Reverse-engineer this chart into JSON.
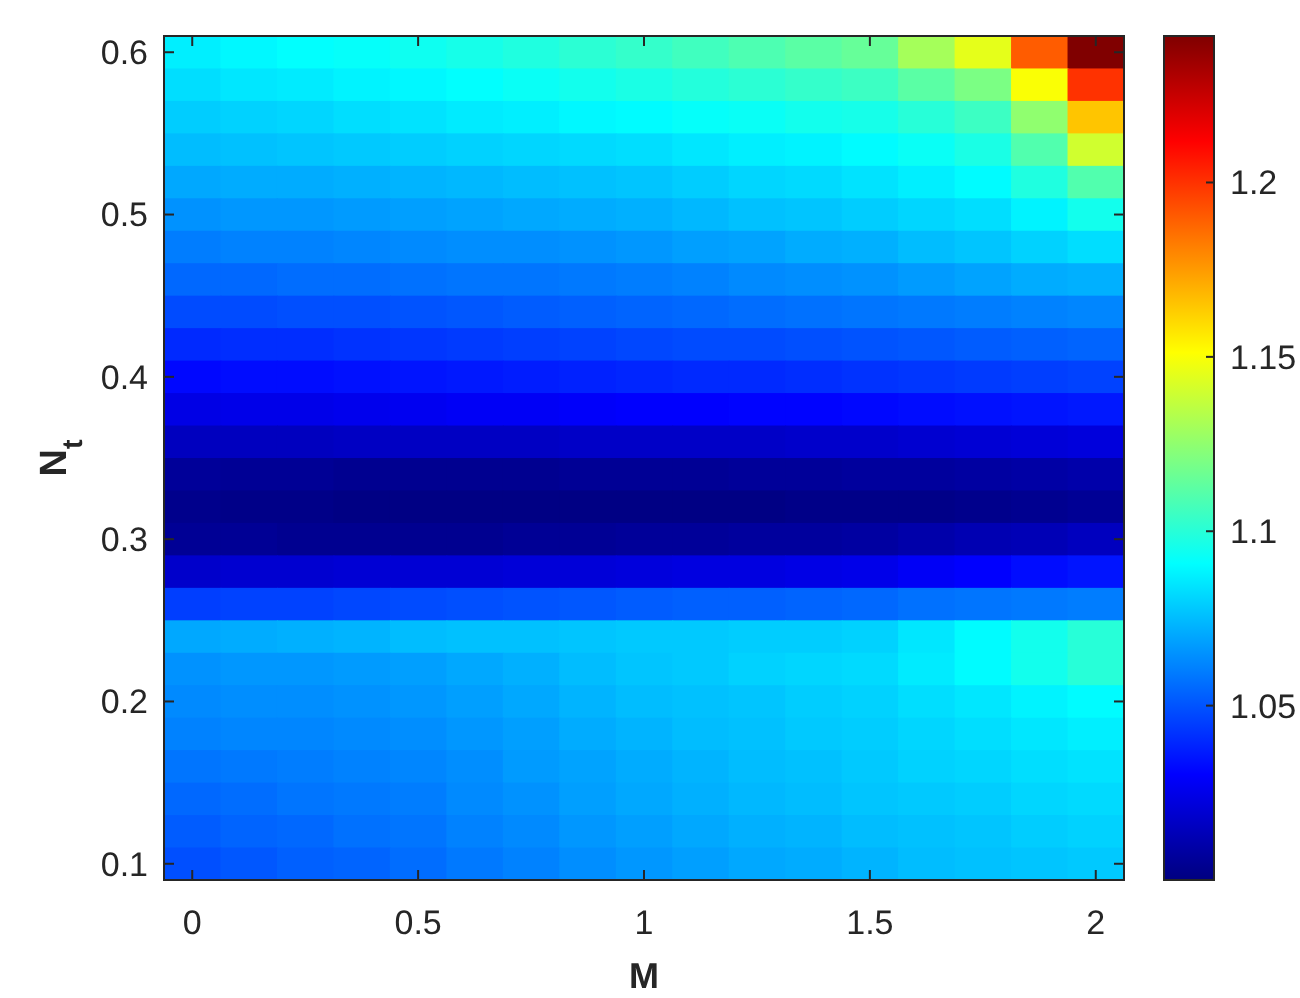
{
  "chart_data": {
    "type": "heatmap",
    "xlabel": "M",
    "ylabel": "N$_{t}$",
    "categories": [
      "0",
      null,
      null,
      null,
      "0.5",
      null,
      null,
      null,
      "1",
      null,
      null,
      null,
      "1.5",
      null,
      null,
      null,
      "2"
    ],
    "y_categories": [
      "0.6",
      null,
      null,
      null,
      null,
      "0.5",
      null,
      null,
      null,
      null,
      "0.4",
      null,
      null,
      null,
      null,
      "0.3",
      null,
      null,
      null,
      null,
      "0.2",
      null,
      null,
      null,
      null,
      "0.1"
    ],
    "cells": [
      [
        1.087,
        1.089,
        1.091,
        1.092,
        1.094,
        1.096,
        1.098,
        1.101,
        1.103,
        1.106,
        1.109,
        1.112,
        1.115,
        1.13,
        1.145,
        1.19,
        1.242
      ],
      [
        1.083,
        1.085,
        1.086,
        1.088,
        1.089,
        1.091,
        1.093,
        1.095,
        1.097,
        1.099,
        1.101,
        1.103,
        1.105,
        1.112,
        1.12,
        1.15,
        1.2
      ],
      [
        1.079,
        1.08,
        1.081,
        1.083,
        1.084,
        1.086,
        1.087,
        1.089,
        1.09,
        1.092,
        1.093,
        1.095,
        1.096,
        1.1,
        1.105,
        1.125,
        1.165
      ],
      [
        1.075,
        1.076,
        1.077,
        1.078,
        1.079,
        1.08,
        1.081,
        1.082,
        1.083,
        1.085,
        1.087,
        1.088,
        1.09,
        1.093,
        1.097,
        1.11,
        1.14
      ],
      [
        1.07,
        1.071,
        1.071,
        1.072,
        1.073,
        1.074,
        1.075,
        1.076,
        1.077,
        1.079,
        1.081,
        1.082,
        1.084,
        1.087,
        1.09,
        1.098,
        1.11
      ],
      [
        1.065,
        1.066,
        1.066,
        1.067,
        1.068,
        1.069,
        1.07,
        1.071,
        1.072,
        1.074,
        1.076,
        1.077,
        1.079,
        1.081,
        1.083,
        1.088,
        1.095
      ],
      [
        1.06,
        1.061,
        1.061,
        1.062,
        1.063,
        1.064,
        1.064,
        1.065,
        1.066,
        1.068,
        1.069,
        1.071,
        1.072,
        1.075,
        1.077,
        1.08,
        1.083
      ],
      [
        1.055,
        1.055,
        1.056,
        1.056,
        1.057,
        1.058,
        1.058,
        1.059,
        1.06,
        1.061,
        1.063,
        1.064,
        1.065,
        1.067,
        1.069,
        1.071,
        1.072
      ],
      [
        1.048,
        1.048,
        1.049,
        1.049,
        1.05,
        1.051,
        1.052,
        1.053,
        1.054,
        1.055,
        1.056,
        1.057,
        1.058,
        1.059,
        1.06,
        1.061,
        1.062
      ],
      [
        1.04,
        1.041,
        1.041,
        1.042,
        1.043,
        1.044,
        1.045,
        1.046,
        1.047,
        1.048,
        1.048,
        1.049,
        1.05,
        1.051,
        1.052,
        1.053,
        1.054
      ],
      [
        1.032,
        1.033,
        1.033,
        1.034,
        1.035,
        1.036,
        1.037,
        1.038,
        1.039,
        1.04,
        1.04,
        1.041,
        1.042,
        1.043,
        1.044,
        1.045,
        1.046
      ],
      [
        1.024,
        1.025,
        1.025,
        1.026,
        1.027,
        1.028,
        1.028,
        1.029,
        1.03,
        1.03,
        1.031,
        1.031,
        1.032,
        1.033,
        1.034,
        1.035,
        1.036
      ],
      [
        1.015,
        1.015,
        1.015,
        1.016,
        1.016,
        1.016,
        1.016,
        1.017,
        1.017,
        1.017,
        1.017,
        1.018,
        1.018,
        1.019,
        1.02,
        1.021,
        1.022
      ],
      [
        1.006,
        1.005,
        1.005,
        1.004,
        1.004,
        1.004,
        1.004,
        1.005,
        1.005,
        1.005,
        1.006,
        1.006,
        1.007,
        1.007,
        1.008,
        1.009,
        1.01
      ],
      [
        1.003,
        1.002,
        1.002,
        1.001,
        1.001,
        1.001,
        1.001,
        1.001,
        1.001,
        1.001,
        1.001,
        1.002,
        1.002,
        1.002,
        1.003,
        1.004,
        1.005
      ],
      [
        1.005,
        1.005,
        1.004,
        1.004,
        1.004,
        1.004,
        1.005,
        1.005,
        1.006,
        1.006,
        1.007,
        1.007,
        1.008,
        1.01,
        1.012,
        1.013,
        1.015
      ],
      [
        1.018,
        1.019,
        1.019,
        1.02,
        1.02,
        1.02,
        1.021,
        1.021,
        1.022,
        1.023,
        1.023,
        1.024,
        1.025,
        1.028,
        1.03,
        1.033,
        1.035
      ],
      [
        1.045,
        1.046,
        1.046,
        1.047,
        1.048,
        1.049,
        1.05,
        1.051,
        1.052,
        1.053,
        1.053,
        1.054,
        1.055,
        1.057,
        1.058,
        1.059,
        1.06
      ],
      [
        1.07,
        1.071,
        1.072,
        1.073,
        1.075,
        1.076,
        1.076,
        1.077,
        1.078,
        1.078,
        1.079,
        1.079,
        1.08,
        1.085,
        1.09,
        1.095,
        1.1
      ],
      [
        1.065,
        1.066,
        1.066,
        1.067,
        1.068,
        1.07,
        1.072,
        1.075,
        1.077,
        1.078,
        1.08,
        1.081,
        1.082,
        1.086,
        1.09,
        1.095,
        1.1
      ],
      [
        1.063,
        1.064,
        1.064,
        1.065,
        1.066,
        1.068,
        1.07,
        1.073,
        1.075,
        1.076,
        1.077,
        1.079,
        1.08,
        1.083,
        1.085,
        1.088,
        1.09
      ],
      [
        1.061,
        1.062,
        1.062,
        1.063,
        1.064,
        1.066,
        1.068,
        1.071,
        1.073,
        1.075,
        1.076,
        1.078,
        1.079,
        1.081,
        1.083,
        1.085,
        1.087
      ],
      [
        1.058,
        1.059,
        1.06,
        1.061,
        1.062,
        1.064,
        1.067,
        1.069,
        1.071,
        1.073,
        1.075,
        1.076,
        1.078,
        1.08,
        1.081,
        1.083,
        1.084
      ],
      [
        1.055,
        1.056,
        1.058,
        1.059,
        1.06,
        1.063,
        1.065,
        1.068,
        1.07,
        1.072,
        1.074,
        1.075,
        1.077,
        1.078,
        1.079,
        1.081,
        1.082
      ],
      [
        1.052,
        1.054,
        1.055,
        1.057,
        1.058,
        1.061,
        1.063,
        1.066,
        1.068,
        1.07,
        1.072,
        1.073,
        1.075,
        1.076,
        1.077,
        1.079,
        1.08
      ],
      [
        1.049,
        1.051,
        1.053,
        1.054,
        1.056,
        1.059,
        1.061,
        1.064,
        1.066,
        1.068,
        1.07,
        1.071,
        1.073,
        1.075,
        1.076,
        1.077,
        1.078
      ]
    ],
    "clim": [
      1,
      1.242
    ],
    "cticks": [
      1.05,
      1.1,
      1.15,
      1.2
    ]
  }
}
